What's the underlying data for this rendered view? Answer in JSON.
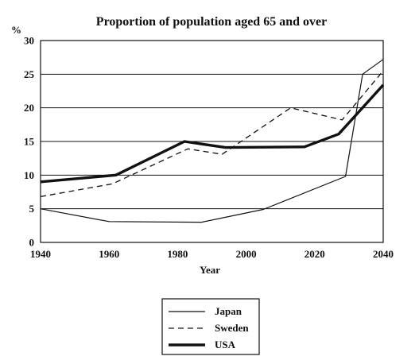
{
  "chart_data": {
    "type": "line",
    "title": "Proportion of population aged 65 and over",
    "xlabel": "Year",
    "ylabel": "%",
    "xlim": [
      1940,
      2040
    ],
    "ylim": [
      0,
      30
    ],
    "xticks": [
      "1940",
      "1960",
      "1980",
      "2000",
      "2020",
      "2040"
    ],
    "yticks": [
      "0",
      "5",
      "10",
      "15",
      "20",
      "25",
      "30"
    ],
    "grid": "horizontal",
    "legend_position": "bottom-center",
    "series": [
      {
        "name": "Japan",
        "style": "thin-solid",
        "color": "#111111",
        "points": [
          [
            1940,
            5
          ],
          [
            1960,
            3.1
          ],
          [
            1987,
            3
          ],
          [
            2005,
            4.9
          ],
          [
            2029,
            9.8
          ],
          [
            2034,
            25
          ],
          [
            2040,
            27.2
          ]
        ]
      },
      {
        "name": "Sweden",
        "style": "dashed",
        "color": "#111111",
        "points": [
          [
            1940,
            6.8
          ],
          [
            1961,
            8.7
          ],
          [
            1983,
            13.9
          ],
          [
            1993,
            13.1
          ],
          [
            2013,
            20
          ],
          [
            2028,
            18.2
          ],
          [
            2040,
            25.5
          ]
        ]
      },
      {
        "name": "USA",
        "style": "thick-solid",
        "color": "#111111",
        "points": [
          [
            1940,
            9
          ],
          [
            1962,
            10
          ],
          [
            1982,
            15
          ],
          [
            1994,
            14.1
          ],
          [
            2017,
            14.2
          ],
          [
            2027,
            16.1
          ],
          [
            2040,
            23.4
          ]
        ]
      }
    ]
  }
}
